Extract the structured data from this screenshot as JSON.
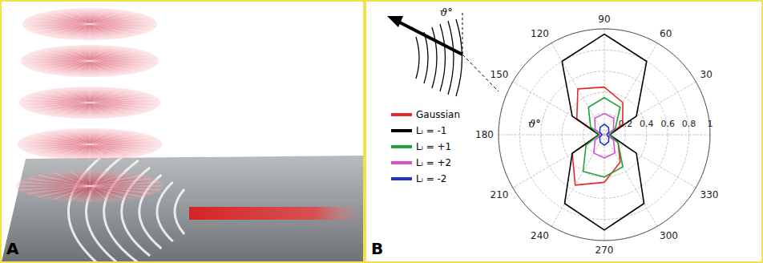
{
  "panel_a": {
    "label": "A"
  },
  "chart_data": {
    "type": "polar_line",
    "panel_label": "B",
    "annotation": "ϑ°",
    "inset_label": "ϑ°",
    "angles": [
      0,
      30,
      60,
      90,
      120,
      150,
      180,
      210,
      240,
      270,
      300,
      330,
      360
    ],
    "angle_ticks": [
      30,
      60,
      90,
      120,
      150,
      180,
      210,
      240,
      270,
      300,
      330
    ],
    "rlim": [
      0,
      1
    ],
    "rticks": [
      0.2,
      0.4,
      0.6,
      0.8,
      1
    ],
    "grid": true,
    "legend": "left",
    "series": [
      {
        "name": "Gaussian",
        "color": "#e8262b",
        "values": [
          0.05,
          0.2,
          0.35,
          0.45,
          0.5,
          0.3,
          0.05,
          0.35,
          0.55,
          0.45,
          0.3,
          0.15,
          0.05
        ]
      },
      {
        "name": "Lᵢ = -1",
        "color": "#000000",
        "values": [
          0.05,
          0.35,
          0.8,
          0.95,
          0.8,
          0.35,
          0.05,
          0.35,
          0.75,
          0.9,
          0.75,
          0.35,
          0.05
        ]
      },
      {
        "name": "Lᵢ = +1",
        "color": "#1fa336",
        "values": [
          0.05,
          0.12,
          0.3,
          0.35,
          0.3,
          0.15,
          0.05,
          0.2,
          0.4,
          0.4,
          0.35,
          0.15,
          0.05
        ]
      },
      {
        "name": "Lᵢ = +2",
        "color": "#d84fd0",
        "values": [
          0.03,
          0.1,
          0.18,
          0.2,
          0.18,
          0.1,
          0.03,
          0.1,
          0.2,
          0.22,
          0.2,
          0.1,
          0.03
        ]
      },
      {
        "name": "Lᵢ = -2",
        "color": "#2233cc",
        "values": [
          0.02,
          0.05,
          0.08,
          0.1,
          0.08,
          0.05,
          0.02,
          0.05,
          0.08,
          0.1,
          0.08,
          0.05,
          0.02
        ]
      }
    ]
  }
}
